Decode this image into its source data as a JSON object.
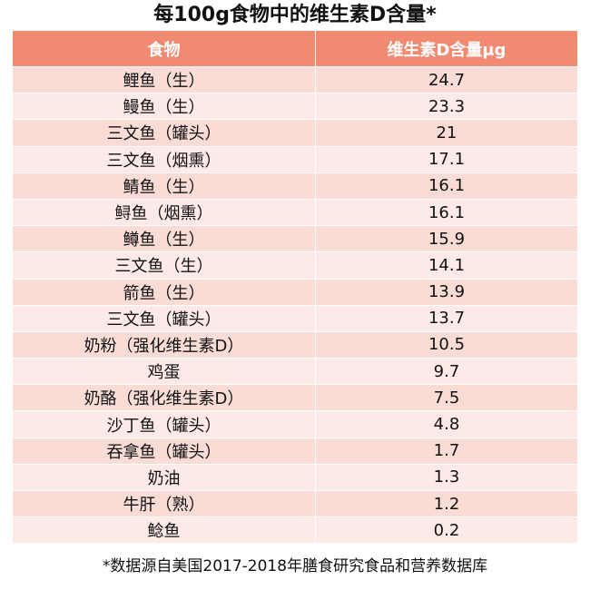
{
  "title": "每100g食物中的维生素D含量*",
  "table": {
    "headers": [
      "食物",
      "维生素D含量μg"
    ],
    "rows": [
      [
        "鲤鱼（生）",
        "24.7"
      ],
      [
        "鳗鱼（生）",
        "23.3"
      ],
      [
        "三文鱼（罐头）",
        "21"
      ],
      [
        "三文鱼（烟熏）",
        "17.1"
      ],
      [
        "鲭鱼（生）",
        "16.1"
      ],
      [
        "鲟鱼（烟熏）",
        "16.1"
      ],
      [
        "鳟鱼（生）",
        "15.9"
      ],
      [
        "三文鱼（生）",
        "14.1"
      ],
      [
        "箭鱼（生）",
        "13.9"
      ],
      [
        "三文鱼（罐头）",
        "13.7"
      ],
      [
        "奶粉（强化维生素D）",
        "10.5"
      ],
      [
        "鸡蛋",
        "9.7"
      ],
      [
        "奶酪（强化维生素D）",
        "7.5"
      ],
      [
        "沙丁鱼（罐头）",
        "4.8"
      ],
      [
        "吞拿鱼（罐头）",
        "1.7"
      ],
      [
        "奶油",
        "1.3"
      ],
      [
        "牛肝（熟）",
        "1.2"
      ],
      [
        "鲶鱼",
        "0.2"
      ]
    ]
  },
  "footnote": "*数据源自美国2017-2018年膳食研究食品和营养数据库",
  "colors": {
    "header_bg": "#f08a70",
    "row_dark": "#fadcd6",
    "row_light": "#fde9e5"
  }
}
